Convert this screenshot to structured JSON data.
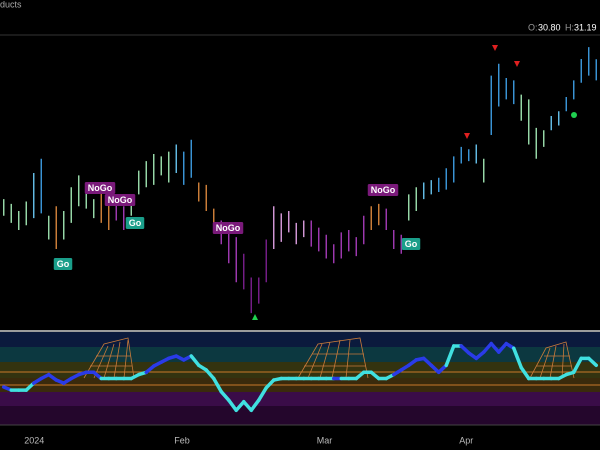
{
  "header": {
    "title": "ducts",
    "ohlc": [
      "O:",
      "30.80",
      "H:",
      "31.19"
    ]
  },
  "chart_data": [
    {
      "type": "ohlc",
      "high": [
        25.3,
        25.1,
        24.8,
        25.2,
        26.4,
        27.0,
        24.6,
        25.0,
        24.8,
        25.8,
        26.3,
        25.8,
        25.3,
        25.6,
        25.1,
        25.3,
        25.0,
        25.4,
        26.5,
        26.9,
        27.2,
        27.1,
        27.3,
        27.6,
        27.3,
        27.8,
        26.0,
        25.9,
        24.9,
        24.4,
        24.0,
        23.7,
        23.0,
        22.0,
        22.0,
        23.6,
        25.0,
        24.7,
        24.8,
        24.3,
        24.4,
        24.4,
        24.1,
        23.8,
        23.4,
        23.9,
        24.0,
        23.7,
        24.6,
        25.0,
        25.1,
        24.9,
        24.0,
        23.8,
        25.5,
        25.8,
        26.0,
        26.1,
        26.2,
        26.6,
        27.1,
        27.5,
        27.4,
        27.6,
        27.0,
        30.5,
        31.0,
        30.4,
        30.3,
        29.7,
        29.5,
        28.3,
        28.2,
        28.8,
        29.0,
        29.6,
        30.3,
        31.2,
        31.7,
        31.19
      ],
      "low": [
        24.6,
        24.3,
        24.0,
        24.2,
        24.5,
        24.7,
        23.6,
        23.2,
        23.6,
        24.3,
        25.0,
        24.9,
        24.5,
        24.3,
        24.0,
        24.4,
        24.0,
        24.6,
        25.5,
        25.8,
        25.9,
        26.3,
        26.0,
        26.4,
        25.9,
        26.2,
        25.2,
        24.8,
        24.0,
        23.4,
        22.6,
        21.8,
        21.5,
        20.5,
        20.9,
        21.8,
        23.2,
        23.5,
        23.9,
        23.4,
        23.7,
        23.3,
        23.1,
        22.8,
        22.6,
        22.8,
        23.1,
        22.9,
        23.4,
        24.0,
        24.2,
        24.0,
        23.2,
        23.0,
        24.4,
        24.8,
        25.3,
        25.5,
        25.6,
        25.7,
        26.0,
        26.8,
        26.9,
        26.8,
        26.0,
        28.0,
        29.2,
        29.5,
        29.3,
        28.6,
        27.6,
        27.0,
        27.5,
        28.2,
        28.4,
        29.0,
        29.5,
        30.2,
        30.5,
        30.3
      ],
      "colors": [
        "#9fe3b0",
        "#9fe3b0",
        "#9fe3b0",
        "#9fe3b0",
        "#68c3ee",
        "#3d9be0",
        "#9fe3b0",
        "#d5843c",
        "#9fe3b0",
        "#9fe3b0",
        "#9fe3b0",
        "#9fe3b0",
        "#9fe3b0",
        "#d5843c",
        "#d5843c",
        "#a43bb8",
        "#a43bb8",
        "#9fe3b0",
        "#9fe3b0",
        "#9fe3b0",
        "#9fe3b0",
        "#9fe3b0",
        "#9fe3b0",
        "#68c3ee",
        "#3d9be0",
        "#3d9be0",
        "#d5843c",
        "#d5843c",
        "#d5843c",
        "#a43bb8",
        "#a43bb8",
        "#a43bb8",
        "#7b1f8e",
        "#7b1f8e",
        "#7b1f8e",
        "#7b1f8e",
        "#dc9ee0",
        "#dc9ee0",
        "#dc9ee0",
        "#dc9ee0",
        "#dc9ee0",
        "#a43bb8",
        "#a43bb8",
        "#a43bb8",
        "#a43bb8",
        "#a43bb8",
        "#a43bb8",
        "#a43bb8",
        "#a43bb8",
        "#d5843c",
        "#d5843c",
        "#a43bb8",
        "#a43bb8",
        "#a43bb8",
        "#9fe3b0",
        "#9fe3b0",
        "#68c3ee",
        "#68c3ee",
        "#3d9be0",
        "#3d9be0",
        "#3d9be0",
        "#3d9be0",
        "#3d9be0",
        "#68c3ee",
        "#9fe3b0",
        "#3d9be0",
        "#3d9be0",
        "#3d9be0",
        "#3d9be0",
        "#9fe3b0",
        "#9fe3b0",
        "#9fe3b0",
        "#9fe3b0",
        "#68c3ee",
        "#68c3ee",
        "#3d9be0",
        "#3d9be0",
        "#3d9be0",
        "#3d9be0",
        "#3d9be0"
      ],
      "ylim": [
        20,
        32
      ],
      "annotations": [
        "NoGo",
        "NoGo",
        "Go",
        "Go",
        "NoGo",
        "NoGo",
        "Go"
      ]
    },
    {
      "type": "line",
      "categories": [
        null,
        null,
        null,
        "2024",
        null,
        null,
        null,
        null,
        null,
        null,
        null,
        null,
        null,
        null,
        null,
        null,
        null,
        null,
        null,
        null,
        null,
        null,
        null,
        "Feb",
        null,
        null,
        null,
        null,
        null,
        null,
        null,
        null,
        null,
        null,
        null,
        null,
        null,
        null,
        null,
        null,
        null,
        null,
        "Mar",
        null,
        null,
        null,
        null,
        null,
        null,
        null,
        null,
        null,
        null,
        null,
        null,
        null,
        null,
        null,
        null,
        null,
        null,
        "Apr",
        null,
        null,
        null,
        null,
        null,
        null,
        null,
        null,
        null,
        null,
        null,
        null,
        null,
        null,
        null,
        null,
        null,
        null
      ],
      "values": [
        -1.1,
        -1.5,
        -1.5,
        -1.5,
        -0.6,
        0,
        0.5,
        -0.2,
        -0.6,
        0,
        0.5,
        0.8,
        0.8,
        0,
        0,
        0,
        0,
        0,
        0.5,
        0.8,
        1.6,
        2.1,
        2.6,
        2.9,
        2.4,
        2.9,
        1.7,
        1.1,
        0,
        -1.7,
        -2.8,
        -4.1,
        -3.0,
        -4.1,
        -2.8,
        -1.2,
        -0.2,
        0,
        0,
        0,
        0,
        0,
        0,
        0,
        0,
        0,
        0,
        0,
        0.8,
        0.8,
        0,
        0,
        0.5,
        1.1,
        1.7,
        2.4,
        2.6,
        1.7,
        0.8,
        1.7,
        4.2,
        4.2,
        3.3,
        2.6,
        3.4,
        4.5,
        3.4,
        4.5,
        3.9,
        1.4,
        0,
        0,
        0,
        0,
        0,
        0.5,
        0.8,
        2.6,
        2.6,
        1.7
      ],
      "colors": [
        "#2a3be8",
        "#2a3be8",
        "#40e0e0",
        "#40e0e0",
        "#40e0e0",
        "#2a3be8",
        "#2a3be8",
        "#2a3be8",
        "#2a3be8",
        "#2a3be8",
        "#2a3be8",
        "#2a3be8",
        "#2a3be8",
        "#2a3be8",
        "#40e0e0",
        "#40e0e0",
        "#40e0e0",
        "#40e0e0",
        "#40e0e0",
        "#40e0e0",
        "#2a3be8",
        "#2a3be8",
        "#2a3be8",
        "#2a3be8",
        "#2a3be8",
        "#2a3be8",
        "#40e0e0",
        "#40e0e0",
        "#40e0e0",
        "#40e0e0",
        "#40e0e0",
        "#40e0e0",
        "#40e0e0",
        "#40e0e0",
        "#40e0e0",
        "#40e0e0",
        "#40e0e0",
        "#40e0e0",
        "#40e0e0",
        "#40e0e0",
        "#40e0e0",
        "#40e0e0",
        "#40e0e0",
        "#40e0e0",
        "#40e0e0",
        "#2a3be8",
        "#40e0e0",
        "#40e0e0",
        "#40e0e0",
        "#40e0e0",
        "#40e0e0",
        "#40e0e0",
        "#40e0e0",
        "#2a3be8",
        "#2a3be8",
        "#2a3be8",
        "#2a3be8",
        "#2a3be8",
        "#2a3be8",
        "#2a3be8",
        "#40e0e0",
        "#40e0e0",
        "#2a3be8",
        "#2a3be8",
        "#2a3be8",
        "#2a3be8",
        "#2a3be8",
        "#2a3be8",
        "#2a3be8",
        "#40e0e0",
        "#40e0e0",
        "#40e0e0",
        "#40e0e0",
        "#40e0e0",
        "#40e0e0",
        "#40e0e0",
        "#40e0e0",
        "#40e0e0",
        "#40e0e0",
        "#40e0e0"
      ],
      "ylim": [
        -6,
        6
      ]
    }
  ]
}
